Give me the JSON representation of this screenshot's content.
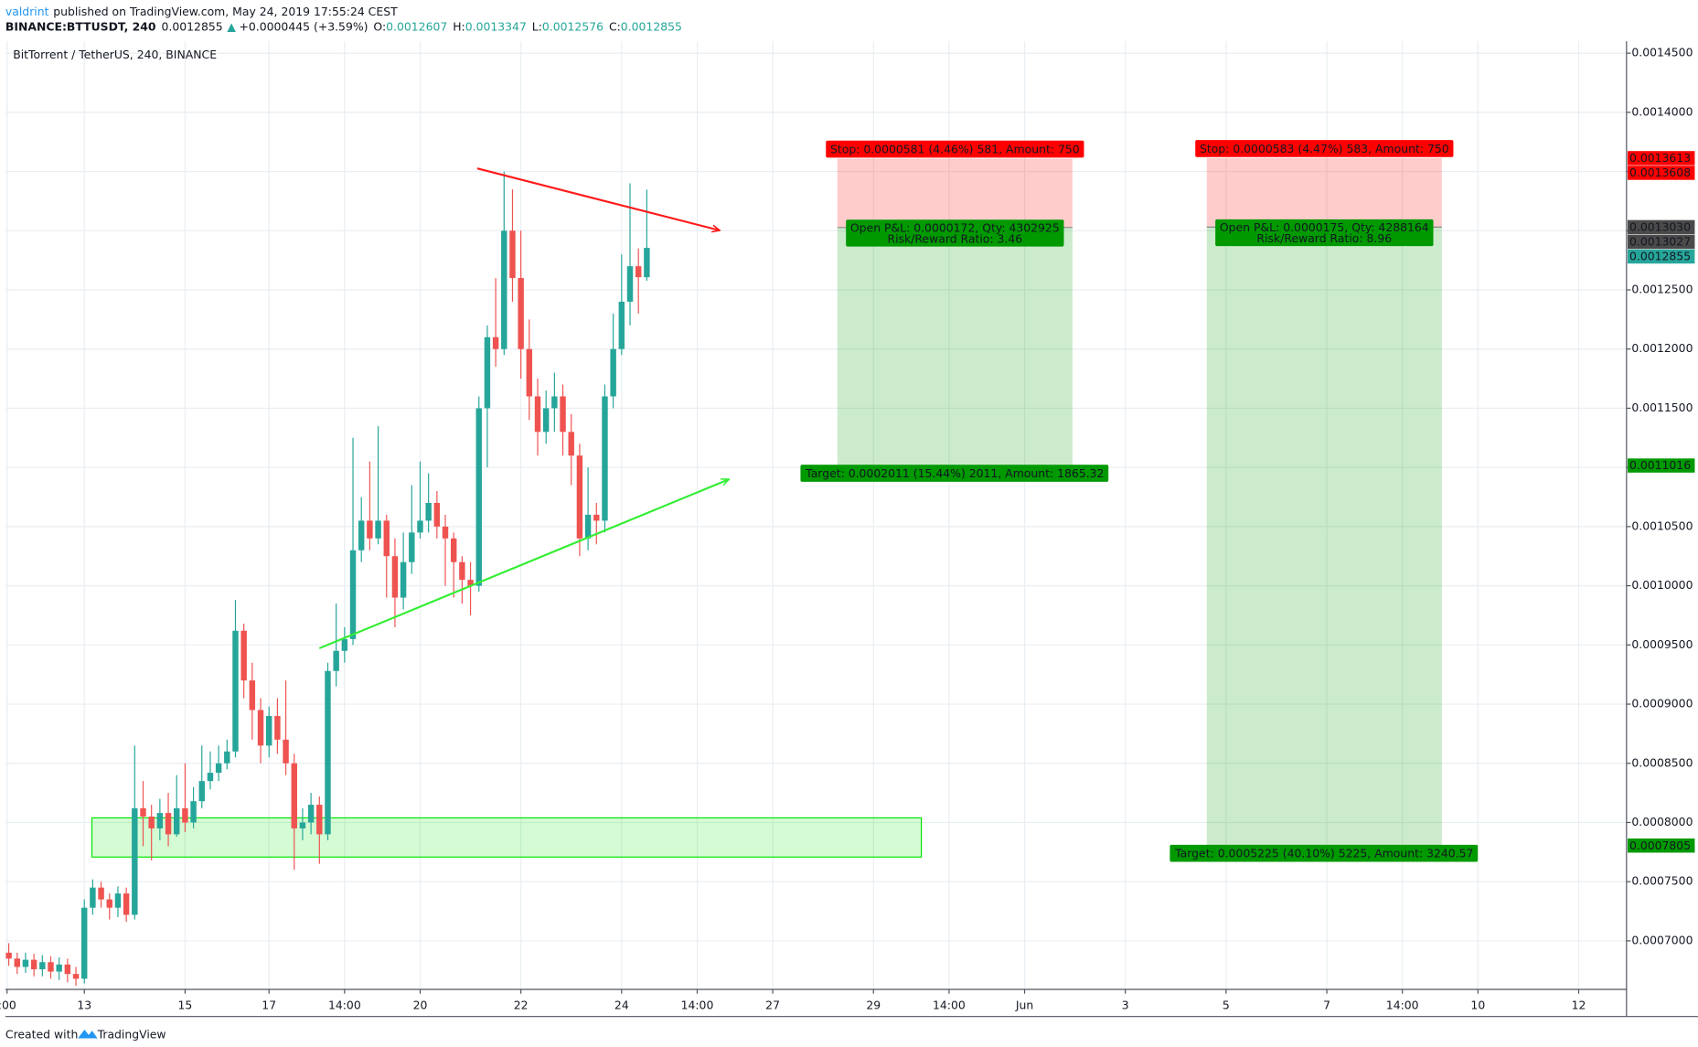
{
  "header": {
    "author": "valdrint",
    "published": "published on TradingView.com, May 24, 2019 17:55:24 CEST",
    "symbol": "BINANCE:BTTUSDT, 240",
    "change": "+0.0000445 (+3.59%)",
    "ohlc_labels": [
      "O:",
      "H:",
      "L:",
      "C:"
    ]
  },
  "footer": {
    "created": "Created with",
    "brand": "TradingView"
  },
  "chart_data": {
    "type": "candlestick",
    "title": "BitTorrent / TetherUS, 240, BINANCE",
    "up_color": "#26a69a",
    "down_color": "#ef5350",
    "grid": true,
    "xlim": [
      -9.4,
      183.7
    ],
    "xticks": [
      {
        "value": -9.2,
        "label": ":00"
      },
      {
        "value": 0,
        "label": "13"
      },
      {
        "value": 12,
        "label": "15"
      },
      {
        "value": 22,
        "label": "17"
      },
      {
        "value": 31,
        "label": "14:00"
      },
      {
        "value": 40,
        "label": "20"
      },
      {
        "value": 52,
        "label": "22"
      },
      {
        "value": 64,
        "label": "24"
      },
      {
        "value": 73,
        "label": "14:00"
      },
      {
        "value": 82,
        "label": "27"
      },
      {
        "value": 94,
        "label": "29"
      },
      {
        "value": 103,
        "label": "14:00"
      },
      {
        "value": 112,
        "label": "Jun"
      },
      {
        "value": 124,
        "label": "3"
      },
      {
        "value": 136,
        "label": "5"
      },
      {
        "value": 148,
        "label": "7"
      },
      {
        "value": 157,
        "label": "14:00"
      },
      {
        "value": 166,
        "label": "10"
      },
      {
        "value": 178,
        "label": "12"
      }
    ],
    "ylim": [
      0.000659,
      0.00146
    ],
    "yticks": [
      {
        "value": 0.00145,
        "label": "0.0014500"
      },
      {
        "value": 0.0014,
        "label": "0.0014000"
      },
      {
        "value": 0.00135,
        "label": "0.0013500"
      },
      {
        "value": 0.0013,
        "label": "0.0013000"
      },
      {
        "value": 0.00125,
        "label": "0.0012500"
      },
      {
        "value": 0.0012,
        "label": "0.0012000"
      },
      {
        "value": 0.00115,
        "label": "0.0011500"
      },
      {
        "value": 0.0011,
        "label": "0.0011000"
      },
      {
        "value": 0.00105,
        "label": "0.0010500"
      },
      {
        "value": 0.001,
        "label": "0.0010000"
      },
      {
        "value": 0.00095,
        "label": "0.0009500"
      },
      {
        "value": 0.0009,
        "label": "0.0009000"
      },
      {
        "value": 0.00085,
        "label": "0.0008500"
      },
      {
        "value": 0.0008,
        "label": "0.0008000"
      },
      {
        "value": 0.00075,
        "label": "0.0007500"
      },
      {
        "value": 0.0007,
        "label": "0.0007000"
      }
    ],
    "x": [
      -9,
      -8,
      -7,
      -6,
      -5,
      -4,
      -3,
      -2,
      -1,
      0,
      1,
      2,
      3,
      4,
      5,
      6,
      7,
      8,
      9,
      10,
      11,
      12,
      13,
      14,
      15,
      16,
      17,
      18,
      19,
      20,
      21,
      22,
      23,
      24,
      25,
      26,
      27,
      28,
      29,
      30,
      31,
      32,
      33,
      34,
      35,
      36,
      37,
      38,
      39,
      40,
      41,
      42,
      43,
      44,
      45,
      46,
      47,
      48,
      49,
      50,
      51,
      52,
      53,
      54,
      55,
      56,
      57,
      58,
      59,
      60,
      61,
      62,
      63,
      64,
      65,
      66,
      67
    ],
    "open": [
      0.00069,
      0.000685,
      0.000678,
      0.000684,
      0.000676,
      0.000682,
      0.000674,
      0.00068,
      0.000672,
      0.000668,
      0.000728,
      0.000745,
      0.000735,
      0.000728,
      0.00074,
      0.000722,
      0.000812,
      0.000805,
      0.000795,
      0.000808,
      0.00079,
      0.000812,
      0.0008,
      0.000818,
      0.000835,
      0.000842,
      0.00085,
      0.00086,
      0.000962,
      0.00092,
      0.000895,
      0.000865,
      0.00089,
      0.00087,
      0.00085,
      0.000795,
      0.0008,
      0.000815,
      0.00079,
      0.000928,
      0.000945,
      0.000955,
      0.00103,
      0.001055,
      0.00104,
      0.001055,
      0.001025,
      0.00099,
      0.00102,
      0.001045,
      0.001055,
      0.00107,
      0.00105,
      0.00104,
      0.00102,
      0.001005,
      0.001,
      0.00115,
      0.00121,
      0.0012,
      0.0013,
      0.00126,
      0.0012,
      0.00116,
      0.00113,
      0.00115,
      0.00116,
      0.00113,
      0.00111,
      0.00104,
      0.00106,
      0.001055,
      0.00116,
      0.0012,
      0.00124,
      0.00127,
      0.0012607
    ],
    "high": [
      0.000698,
      0.00069,
      0.00069,
      0.000689,
      0.000688,
      0.000687,
      0.000686,
      0.000685,
      0.000678,
      0.000735,
      0.000752,
      0.00075,
      0.00074,
      0.000746,
      0.000745,
      0.000865,
      0.000835,
      0.000815,
      0.00082,
      0.000825,
      0.00084,
      0.00085,
      0.00083,
      0.000865,
      0.00086,
      0.000865,
      0.00087,
      0.000988,
      0.000968,
      0.000935,
      0.000905,
      0.000898,
      0.000905,
      0.00092,
      0.000858,
      0.000812,
      0.000825,
      0.000822,
      0.000935,
      0.000985,
      0.000965,
      0.001125,
      0.001075,
      0.001105,
      0.001135,
      0.00106,
      0.00104,
      0.001045,
      0.001085,
      0.001105,
      0.001095,
      0.00108,
      0.00106,
      0.001045,
      0.001025,
      0.00102,
      0.00116,
      0.00122,
      0.00126,
      0.00135,
      0.001335,
      0.0013,
      0.001225,
      0.001175,
      0.001165,
      0.00118,
      0.00117,
      0.001145,
      0.00112,
      0.0011,
      0.00107,
      0.00117,
      0.00123,
      0.00128,
      0.00134,
      0.001285,
      0.0013347
    ],
    "low": [
      0.000679,
      0.000672,
      0.000673,
      0.00067,
      0.00067,
      0.000668,
      0.000667,
      0.000665,
      0.000662,
      0.000664,
      0.000722,
      0.000728,
      0.000718,
      0.00072,
      0.000716,
      0.000718,
      0.00078,
      0.000768,
      0.000785,
      0.00078,
      0.000788,
      0.000792,
      0.000795,
      0.000812,
      0.000828,
      0.000835,
      0.000845,
      0.000855,
      0.000905,
      0.00087,
      0.00085,
      0.000855,
      0.000858,
      0.00084,
      0.00076,
      0.000785,
      0.00079,
      0.000765,
      0.000785,
      0.000915,
      0.000935,
      0.00095,
      0.00102,
      0.00103,
      0.001035,
      0.00099,
      0.000965,
      0.00098,
      0.00101,
      0.00104,
      0.001045,
      0.00104,
      0.001,
      0.00099,
      0.000985,
      0.000975,
      0.000995,
      0.0011,
      0.001185,
      0.001195,
      0.00124,
      0.001175,
      0.00114,
      0.00111,
      0.00112,
      0.00113,
      0.00111,
      0.001085,
      0.001025,
      0.00103,
      0.001035,
      0.001045,
      0.00115,
      0.001195,
      0.00122,
      0.00123,
      0.0012576
    ],
    "close": [
      0.000685,
      0.000678,
      0.000684,
      0.000676,
      0.000682,
      0.000674,
      0.00068,
      0.000672,
      0.000668,
      0.000728,
      0.000745,
      0.000735,
      0.000728,
      0.00074,
      0.000722,
      0.000812,
      0.000805,
      0.000795,
      0.000808,
      0.00079,
      0.000812,
      0.0008,
      0.000818,
      0.000835,
      0.000842,
      0.00085,
      0.00086,
      0.000962,
      0.00092,
      0.000895,
      0.000865,
      0.00089,
      0.00087,
      0.00085,
      0.000795,
      0.0008,
      0.000815,
      0.00079,
      0.000928,
      0.000945,
      0.000955,
      0.00103,
      0.001055,
      0.00104,
      0.001055,
      0.001025,
      0.00099,
      0.00102,
      0.001045,
      0.001055,
      0.00107,
      0.00105,
      0.00104,
      0.00102,
      0.001005,
      0.001,
      0.00115,
      0.00121,
      0.0012,
      0.0013,
      0.00126,
      0.0012,
      0.00116,
      0.00113,
      0.00115,
      0.00116,
      0.00113,
      0.00111,
      0.00104,
      0.00106,
      0.001055,
      0.00116,
      0.0012,
      0.00124,
      0.00127,
      0.0012607,
      0.0012855
    ],
    "last_color": "#26a69a",
    "drawings": [
      {
        "type": "rect",
        "color": "#00e600",
        "x": [
          0.9,
          99.7
        ],
        "y": [
          0.0008039,
          0.0007708
        ]
      },
      {
        "type": "trend",
        "color": "#ff1a1a",
        "x": [
          46.8,
          75.7
        ],
        "y": [
          0.0013526,
          0.0013002
        ]
      },
      {
        "type": "trend",
        "color": "#33ee33",
        "x": [
          28,
          76.8
        ],
        "y": [
          0.0009472,
          0.00109
        ]
      }
    ],
    "positions": [
      {
        "x": [
          89.7,
          117.7
        ],
        "stop": 0.0013608,
        "entry": 0.0013027,
        "target": 0.0011016,
        "stop_label": "Stop: 0.0000581 (4.46%) 581, Amount: 750",
        "pnl_label": "Open P&L: 0.0000172, Qty: 4302925",
        "ratio_label": "Risk/Reward Ratio: 3.46",
        "target_label": "Target: 0.0002011 (15.44%) 2011, Amount: 1865.32"
      },
      {
        "x": [
          133.7,
          161.7
        ],
        "stop": 0.0013613,
        "entry": {
          "value": 0.001303,
          "label": "0.0013030"
        },
        "target": 0.0007805,
        "stop_label": "Stop: 0.0000583 (4.47%) 583, Amount: 750",
        "pnl_label": "Open P&L: 0.0000175, Qty: 4288164",
        "ratio_label": "Risk/Reward Ratio: 8.96",
        "target_label": "Target: 0.0005225 (40.10%) 5225, Amount: 3240.57"
      }
    ],
    "stop_color": "#ff0000",
    "target_color": "#009900",
    "entry_color": "#4a4a4a"
  }
}
